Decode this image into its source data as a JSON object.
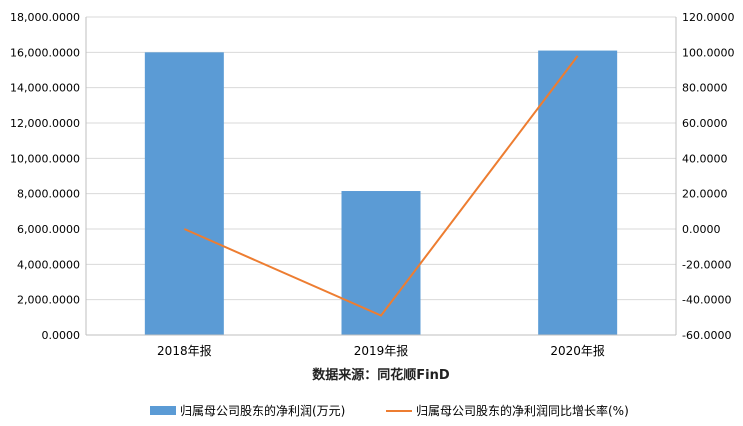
{
  "chart_data": {
    "type": "bar",
    "categories": [
      "2018年报",
      "2019年报",
      "2020年报"
    ],
    "series": [
      {
        "name": "归属母公司股东的净利润(万元)",
        "type": "bar",
        "axis": "left",
        "color": "#5b9bd5",
        "values": [
          16000,
          8150,
          16100
        ]
      },
      {
        "name": "归属母公司股东的净利润同比增长率(%)",
        "type": "line",
        "axis": "right",
        "color": "#ed7d31",
        "values": [
          0,
          -49,
          98
        ]
      }
    ],
    "y_left": {
      "min": 0,
      "max": 18000,
      "ticks": [
        "0.0000",
        "2,000.0000",
        "4,000.0000",
        "6,000.0000",
        "8,000.0000",
        "10,000.0000",
        "12,000.0000",
        "14,000.0000",
        "16,000.0000",
        "18,000.0000"
      ]
    },
    "y_right": {
      "min": -60,
      "max": 120,
      "ticks": [
        "-60.0000",
        "-40.0000",
        "-20.0000",
        "0.0000",
        "20.0000",
        "40.0000",
        "60.0000",
        "80.0000",
        "100.0000",
        "120.0000"
      ]
    },
    "grid": true,
    "legend_position": "bottom",
    "source_note": "数据来源：同花顺FinD"
  }
}
